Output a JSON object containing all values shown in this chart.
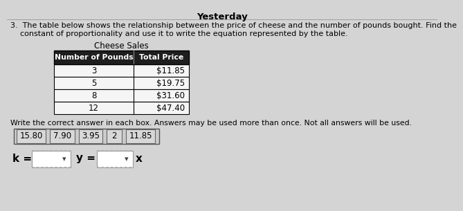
{
  "title": "Yesterday",
  "problem_line1": "3.  The table below shows the relationship between the price of cheese and the number of pounds bought. Find the",
  "problem_line2": "    constant of proportionality and use it to write the equation represented by the table.",
  "table_title": "Cheese Sales",
  "col_headers": [
    "Number of Pounds",
    "Total Price"
  ],
  "table_data": [
    [
      "3",
      "$11.85"
    ],
    [
      "5",
      "$19.75"
    ],
    [
      "8",
      "$31.60"
    ],
    [
      "12",
      "$47.40"
    ]
  ],
  "instruction": "Write the correct answer in each box. Answers may be used more than once. Not all answers will be used.",
  "answer_choices": [
    "15.80",
    "7.90",
    "3.95",
    "2",
    "11.85"
  ],
  "bg_color": "#d4d4d4",
  "table_header_bg": "#1e1e1e",
  "table_header_fg": "#ffffff",
  "table_row_bg": "#f5f5f5",
  "table_border": "#000000",
  "answer_box_bg": "#d8d8d8",
  "answer_box_border": "#666666",
  "answer_outer_box_border": "#555555",
  "dropdown_bg": "#ffffff",
  "dropdown_border": "#999999"
}
